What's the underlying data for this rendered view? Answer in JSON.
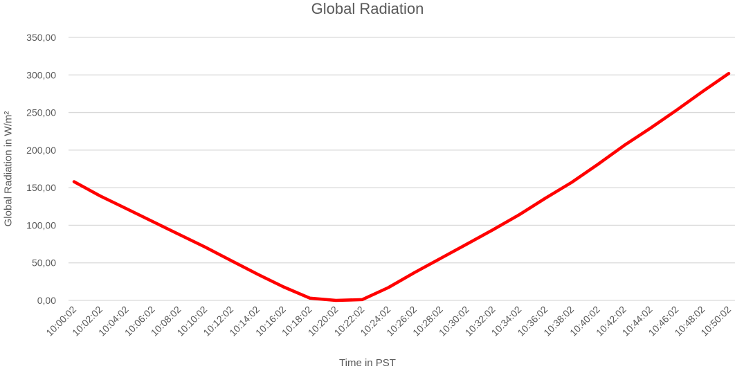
{
  "chart_data": {
    "type": "line",
    "title": "Global Radiation",
    "xlabel": "Time in PST",
    "ylabel": "Global Radiation in W/m²",
    "ylim": [
      0,
      350
    ],
    "yticks": [
      "0,00",
      "50,00",
      "100,00",
      "150,00",
      "200,00",
      "250,00",
      "300,00",
      "350,00"
    ],
    "grid": true,
    "legend": null,
    "categories": [
      "10:00:02",
      "10:02:02",
      "10:04:02",
      "10:06:02",
      "10:08:02",
      "10:10:02",
      "10:12:02",
      "10:14:02",
      "10:16:02",
      "10:18:02",
      "10:20:02",
      "10:22:02",
      "10:24:02",
      "10:26:02",
      "10:28:02",
      "10:30:02",
      "10:32:02",
      "10:34:02",
      "10:36:02",
      "10:38:02",
      "10:40:02",
      "10:42:02",
      "10:44:02",
      "10:46:02",
      "10:48:02",
      "10:50:02"
    ],
    "series": [
      {
        "name": "Global Radiation",
        "color": "#ff0000",
        "values": [
          158,
          139,
          122,
          105,
          88,
          71,
          53,
          35,
          18,
          3,
          0,
          1,
          17,
          37,
          56,
          75,
          94,
          114,
          136,
          157,
          181,
          206,
          229,
          253,
          278,
          302
        ]
      }
    ]
  },
  "colors": {
    "line": "#ff0000",
    "grid": "#d9d9d9",
    "text": "#595959"
  }
}
